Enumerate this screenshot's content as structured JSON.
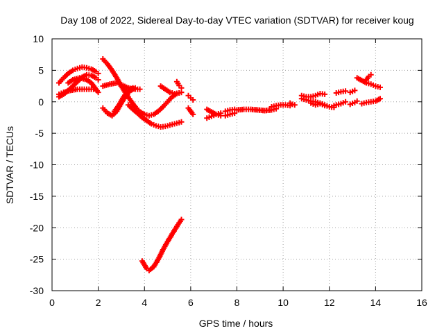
{
  "chart_data": {
    "type": "scatter",
    "title": "Day 108 of 2022, Sidereal Day-to-day VTEC variation (SDTVAR) for receiver koug",
    "xlabel": "GPS time / hours",
    "ylabel": "SDTVAR / TECUs",
    "xlim": [
      0,
      16
    ],
    "ylim": [
      -30,
      10
    ],
    "x_ticks": [
      0,
      2,
      4,
      6,
      8,
      10,
      12,
      14,
      16
    ],
    "y_ticks": [
      -30,
      -25,
      -20,
      -15,
      -10,
      -5,
      0,
      5,
      10
    ],
    "grid": true,
    "marker": "plus",
    "color": "#ff0000",
    "series": [
      {
        "points": [
          [
            0.3,
            3.0
          ],
          [
            0.5,
            3.8
          ],
          [
            0.7,
            4.5
          ],
          [
            0.9,
            5.0
          ],
          [
            1.1,
            5.3
          ],
          [
            1.3,
            5.5
          ],
          [
            1.5,
            5.4
          ],
          [
            1.7,
            5.2
          ],
          [
            1.9,
            4.8
          ],
          [
            2.0,
            4.5
          ]
        ]
      },
      {
        "points": [
          [
            0.3,
            0.8
          ],
          [
            0.5,
            1.2
          ],
          [
            0.7,
            1.8
          ],
          [
            0.9,
            2.5
          ],
          [
            1.1,
            3.2
          ],
          [
            1.3,
            3.9
          ],
          [
            1.5,
            4.3
          ],
          [
            1.7,
            4.2
          ],
          [
            1.9,
            3.8
          ],
          [
            2.0,
            3.5
          ]
        ]
      },
      {
        "points": [
          [
            0.3,
            1.2
          ],
          [
            0.5,
            1.5
          ],
          [
            0.8,
            1.8
          ],
          [
            1.1,
            2.0
          ],
          [
            1.4,
            2.0
          ],
          [
            1.7,
            2.0
          ],
          [
            1.9,
            2.0
          ]
        ]
      },
      {
        "points": [
          [
            0.7,
            3.0
          ],
          [
            0.9,
            3.5
          ],
          [
            1.2,
            3.8
          ],
          [
            1.5,
            3.5
          ],
          [
            1.7,
            3.0
          ],
          [
            1.9,
            2.0
          ],
          [
            2.0,
            1.5
          ]
        ]
      },
      {
        "points": [
          [
            2.2,
            6.8
          ],
          [
            2.4,
            6.0
          ],
          [
            2.6,
            5.0
          ],
          [
            2.8,
            3.8
          ],
          [
            3.0,
            2.5
          ],
          [
            3.2,
            1.3
          ],
          [
            3.4,
            0.2
          ],
          [
            3.6,
            -0.8
          ],
          [
            3.8,
            -1.6
          ],
          [
            4.0,
            -2.0
          ],
          [
            4.2,
            -2.2
          ],
          [
            4.4,
            -2.0
          ],
          [
            4.6,
            -1.5
          ],
          [
            4.8,
            -0.8
          ],
          [
            5.0,
            0.0
          ],
          [
            5.2,
            0.8
          ],
          [
            5.4,
            1.3
          ],
          [
            5.6,
            1.5
          ]
        ]
      },
      {
        "points": [
          [
            2.2,
            2.5
          ],
          [
            2.5,
            2.8
          ],
          [
            2.8,
            3.0
          ],
          [
            3.0,
            2.7
          ],
          [
            3.3,
            2.2
          ],
          [
            3.6,
            2.0
          ],
          [
            3.8,
            2.0
          ]
        ]
      },
      {
        "points": [
          [
            2.2,
            -1.0
          ],
          [
            2.4,
            -1.8
          ],
          [
            2.6,
            -2.2
          ],
          [
            2.8,
            -1.5
          ],
          [
            3.0,
            -0.2
          ],
          [
            3.2,
            1.0
          ],
          [
            3.4,
            1.8
          ],
          [
            3.6,
            2.2
          ]
        ]
      },
      {
        "points": [
          [
            2.7,
            -1.5
          ],
          [
            2.9,
            -0.5
          ],
          [
            3.1,
            0.8
          ],
          [
            3.3,
            1.8
          ],
          [
            3.5,
            2.2
          ]
        ]
      },
      {
        "points": [
          [
            3.3,
            -0.5
          ],
          [
            3.5,
            -1.2
          ],
          [
            3.7,
            -1.8
          ],
          [
            3.9,
            -2.5
          ],
          [
            4.1,
            -3.0
          ],
          [
            4.3,
            -3.5
          ],
          [
            4.5,
            -3.8
          ],
          [
            4.7,
            -4.0
          ],
          [
            4.9,
            -3.9
          ],
          [
            5.1,
            -3.7
          ],
          [
            5.3,
            -3.5
          ],
          [
            5.5,
            -3.3
          ],
          [
            5.6,
            -3.2
          ]
        ]
      },
      {
        "points": [
          [
            4.7,
            2.5
          ],
          [
            4.9,
            2.0
          ],
          [
            5.1,
            1.5
          ],
          [
            5.3,
            1.3
          ],
          [
            5.5,
            1.4
          ],
          [
            5.6,
            1.5
          ]
        ]
      },
      {
        "points": [
          [
            5.4,
            3.2
          ],
          [
            5.5,
            2.6
          ],
          [
            5.6,
            2.2
          ]
        ]
      },
      {
        "points": [
          [
            5.9,
            1.0
          ],
          [
            6.0,
            0.6
          ],
          [
            6.1,
            0.3
          ]
        ]
      },
      {
        "points": [
          [
            5.9,
            -1.0
          ],
          [
            6.0,
            -1.5
          ],
          [
            6.1,
            -2.0
          ]
        ]
      },
      {
        "points": [
          [
            6.7,
            -1.2
          ],
          [
            6.9,
            -1.6
          ],
          [
            7.1,
            -2.0
          ],
          [
            7.3,
            -2.2
          ]
        ]
      },
      {
        "points": [
          [
            6.7,
            -2.6
          ],
          [
            6.9,
            -2.3
          ],
          [
            7.1,
            -2.0
          ],
          [
            7.3,
            -1.8
          ]
        ]
      },
      {
        "points": [
          [
            7.5,
            -1.5
          ],
          [
            7.7,
            -1.3
          ],
          [
            7.9,
            -1.2
          ]
        ]
      },
      {
        "points": [
          [
            7.5,
            -2.2
          ],
          [
            7.7,
            -2.0
          ],
          [
            7.9,
            -1.8
          ]
        ]
      },
      {
        "points": [
          [
            8.0,
            -1.3
          ],
          [
            8.3,
            -1.2
          ],
          [
            8.6,
            -1.2
          ],
          [
            8.9,
            -1.3
          ],
          [
            9.2,
            -1.4
          ],
          [
            9.5,
            -1.3
          ],
          [
            9.7,
            -1.1
          ]
        ]
      },
      {
        "points": [
          [
            9.5,
            -0.8
          ],
          [
            9.7,
            -0.6
          ],
          [
            9.9,
            -0.5
          ],
          [
            10.1,
            -0.5
          ],
          [
            10.3,
            -0.6
          ]
        ]
      },
      {
        "points": [
          [
            10.3,
            -0.2
          ],
          [
            10.4,
            -0.4
          ],
          [
            10.5,
            -0.5
          ]
        ]
      },
      {
        "points": [
          [
            10.8,
            0.5
          ],
          [
            11.0,
            0.3
          ],
          [
            11.2,
            0.1
          ],
          [
            11.4,
            0.0
          ],
          [
            11.6,
            -0.2
          ],
          [
            11.8,
            -0.5
          ],
          [
            12.0,
            -0.8
          ],
          [
            12.2,
            -0.9
          ]
        ]
      },
      {
        "points": [
          [
            10.8,
            1.0
          ],
          [
            11.0,
            0.8
          ],
          [
            11.2,
            0.8
          ],
          [
            11.4,
            1.0
          ],
          [
            11.6,
            1.3
          ],
          [
            11.8,
            1.2
          ]
        ]
      },
      {
        "points": [
          [
            11.2,
            -0.2
          ],
          [
            11.4,
            -0.5
          ],
          [
            11.6,
            -0.3
          ],
          [
            11.8,
            -0.6
          ]
        ]
      },
      {
        "points": [
          [
            12.2,
            -0.6
          ],
          [
            12.4,
            -0.4
          ],
          [
            12.5,
            -0.3
          ],
          [
            12.7,
            0.0
          ]
        ]
      },
      {
        "points": [
          [
            12.3,
            1.4
          ],
          [
            12.5,
            1.6
          ],
          [
            12.7,
            1.7
          ]
        ]
      },
      {
        "points": [
          [
            12.9,
            1.5
          ],
          [
            13.1,
            1.8
          ]
        ]
      },
      {
        "points": [
          [
            12.9,
            -0.4
          ],
          [
            13.1,
            -0.1
          ],
          [
            13.2,
            0.1
          ]
        ]
      },
      {
        "points": [
          [
            13.2,
            3.8
          ],
          [
            13.4,
            3.4
          ],
          [
            13.6,
            3.0
          ],
          [
            13.8,
            2.8
          ],
          [
            14.0,
            2.5
          ],
          [
            14.2,
            2.3
          ]
        ]
      },
      {
        "points": [
          [
            13.6,
            3.5
          ],
          [
            13.7,
            4.0
          ],
          [
            13.8,
            4.3
          ]
        ]
      },
      {
        "points": [
          [
            13.4,
            -0.3
          ],
          [
            13.6,
            -0.1
          ],
          [
            13.8,
            0.0
          ],
          [
            14.0,
            0.1
          ],
          [
            14.2,
            0.5
          ]
        ]
      },
      {
        "points": [
          [
            3.9,
            -25.3
          ],
          [
            4.1,
            -26.5
          ],
          [
            4.2,
            -26.8
          ],
          [
            4.4,
            -26.2
          ],
          [
            4.6,
            -25.0
          ],
          [
            4.8,
            -23.5
          ],
          [
            5.0,
            -22.2
          ],
          [
            5.2,
            -21.0
          ],
          [
            5.4,
            -19.8
          ],
          [
            5.6,
            -18.7
          ]
        ]
      }
    ]
  }
}
